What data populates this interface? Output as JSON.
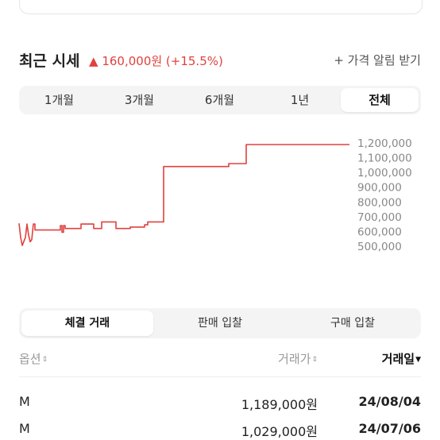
{
  "header": {
    "title": "최근 시세",
    "change_arrow": "▲",
    "change_text": "160,000원 (+15.5%)",
    "alert_link": "+ 가격 알림 받기",
    "accent_color": "#e0413d"
  },
  "period_tabs": [
    {
      "label": "1개월",
      "active": false
    },
    {
      "label": "3개월",
      "active": false
    },
    {
      "label": "6개월",
      "active": false
    },
    {
      "label": "1년",
      "active": false
    },
    {
      "label": "전체",
      "active": true
    }
  ],
  "chart_data": {
    "type": "line",
    "title": "",
    "xlabel": "",
    "ylabel": "",
    "ylim": [
      450000,
      1250000
    ],
    "y_ticks": [
      "1,200,000",
      "1,100,000",
      "1,000,000",
      "900,000",
      "800,000",
      "700,000",
      "600,000",
      "500,000"
    ],
    "y_tick_values": [
      1200000,
      1100000,
      1000000,
      900000,
      800000,
      700000,
      600000,
      500000
    ],
    "line_color": "#e0413d",
    "series": [
      {
        "values": [
          655000,
          610000,
          520000,
          570000,
          650000,
          570000,
          530000,
          650000,
          610000,
          640000,
          650000,
          590000,
          640000,
          640000,
          665000,
          665000,
          620000,
          620000,
          665000,
          670000,
          665000,
          670000,
          675000,
          680000,
          620000,
          625000,
          640000,
          640000,
          665000,
          675000,
          1040000,
          1040000,
          1060000,
          1075000,
          1189000,
          1189000
        ]
      }
    ]
  },
  "trade_tabs": [
    {
      "label": "체결 거래",
      "active": true
    },
    {
      "label": "판매 입찰",
      "active": false
    },
    {
      "label": "구매 입찰",
      "active": false
    }
  ],
  "table": {
    "headers": {
      "option": "옵션",
      "price": "거래가",
      "date": "거래일"
    },
    "rows": [
      {
        "option": "M",
        "price": "1,189,000원",
        "date": "24/08/04"
      },
      {
        "option": "M",
        "price": "1,029,000원",
        "date": "24/07/06"
      }
    ]
  }
}
